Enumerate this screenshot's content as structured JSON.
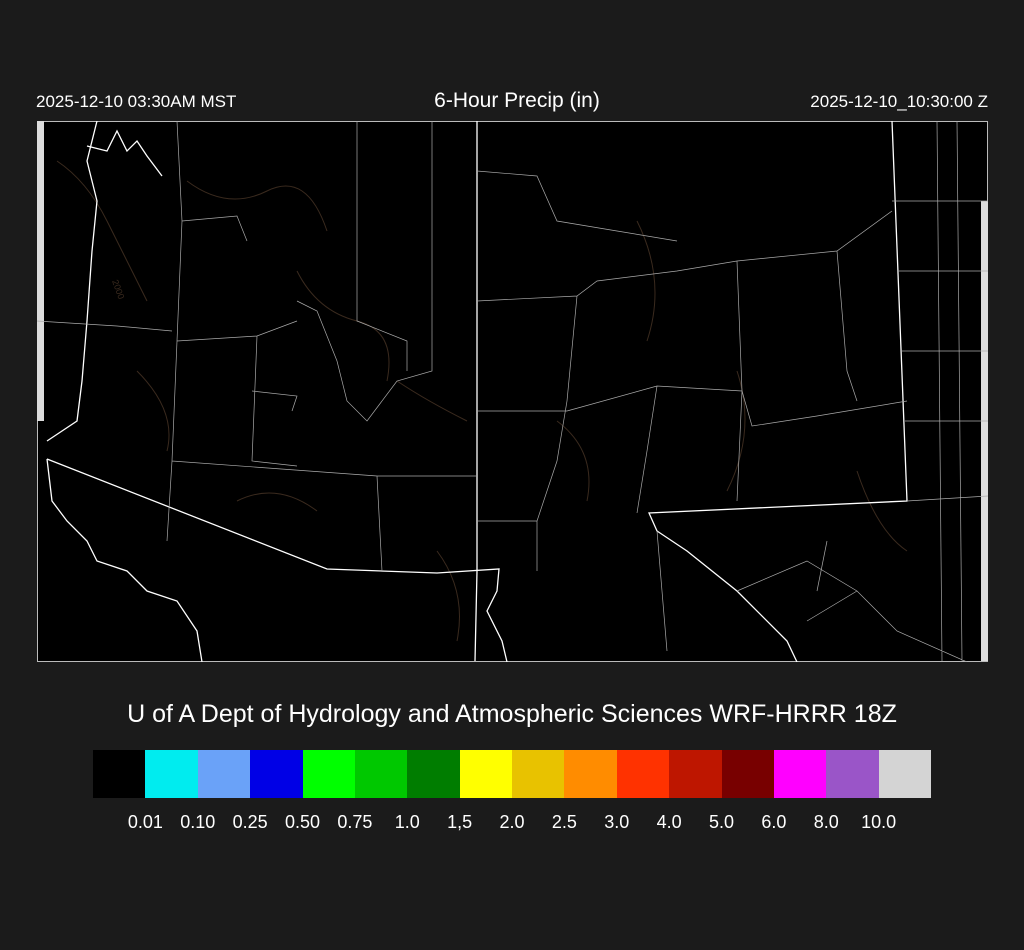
{
  "header": {
    "local_time": "2025-12-10 03:30AM MST",
    "title": "6-Hour Precip (in)",
    "valid_time": "2025-12-10_10:30:00 Z"
  },
  "map": {
    "region": "Arizona / New Mexico",
    "background": "#000000",
    "border_color": "#ffffff",
    "contour_color": "#3a2a1e",
    "contour_label": "2000"
  },
  "credit": "U of A Dept of Hydrology and Atmospheric Sciences WRF-HRRR 18Z",
  "colorbar": {
    "colors": [
      "#000000",
      "#00ecef",
      "#6aa2f8",
      "#0000e6",
      "#00ff00",
      "#00c800",
      "#007d00",
      "#ffff00",
      "#e8c200",
      "#ff8c00",
      "#ff3200",
      "#be1600",
      "#780000",
      "#ff00ff",
      "#9a55c8",
      "#d4d4d4"
    ],
    "labels": [
      "0.01",
      "0.10",
      "0.25",
      "0.50",
      "0.75",
      "1.0",
      "1,5",
      "2.0",
      "2.5",
      "3.0",
      "4.0",
      "5.0",
      "6.0",
      "8.0",
      "10.0"
    ]
  }
}
